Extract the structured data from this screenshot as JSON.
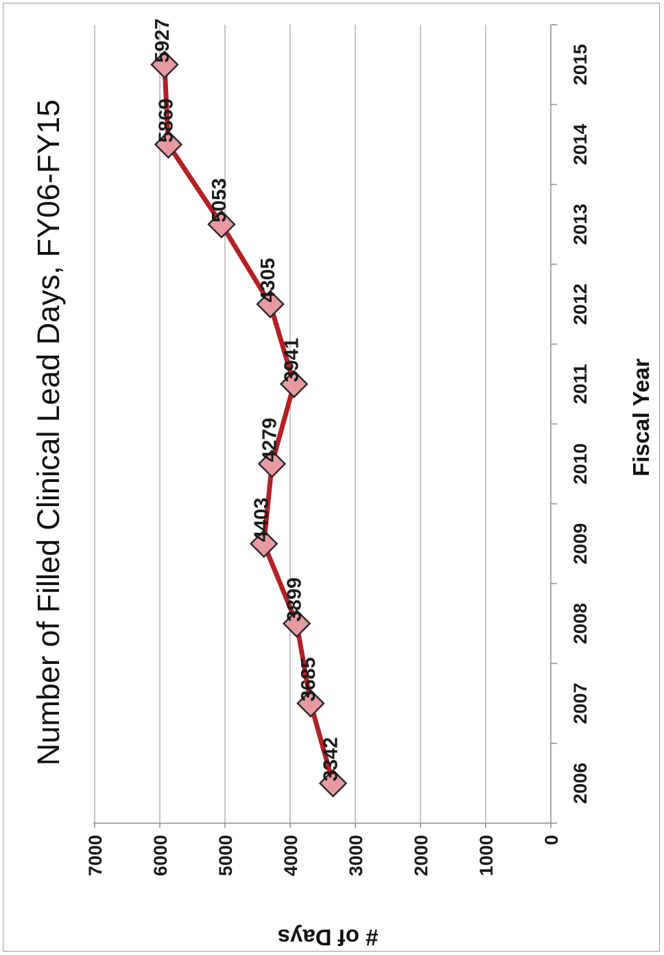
{
  "chart_data": {
    "type": "line",
    "title": "Number of Filled Clinical Lead Days, FY06-FY15",
    "xlabel": "Fiscal Year",
    "ylabel": "# of Days",
    "categories": [
      "2006",
      "2007",
      "2008",
      "2009",
      "2010",
      "2011",
      "2012",
      "2013",
      "2014",
      "2015"
    ],
    "series": [
      {
        "values": [
          3342,
          3685,
          3899,
          4403,
          4279,
          3941,
          4305,
          5053,
          5869,
          5927
        ]
      }
    ],
    "data_labels": [
      "3342",
      "3685",
      "3899",
      "4403",
      "4279",
      "3941",
      "4305",
      "5053",
      "5869",
      "5927"
    ],
    "ylim": [
      0,
      7000
    ],
    "yticks": [
      "0",
      "1000",
      "2000",
      "3000",
      "4000",
      "5000",
      "6000",
      "7000"
    ],
    "grid": true,
    "orientation": "rotated-90-clockwise",
    "colors": {
      "line": "#b32025",
      "marker_fill": "#e89aa2",
      "marker_edge": "#2b2b2b",
      "grid": "#a6a6a6"
    }
  }
}
